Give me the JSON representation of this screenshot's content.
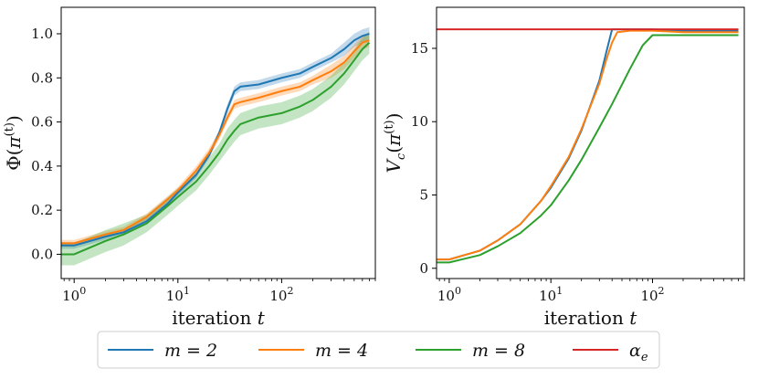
{
  "chart_data": [
    {
      "type": "line",
      "title": "",
      "xlabel": "iteration t",
      "ylabel": "Φ(π(t))",
      "xscale": "log",
      "xlim": [
        0.75,
        800
      ],
      "ylim": [
        -0.11,
        1.12
      ],
      "xticks": [
        {
          "value": 1,
          "label": "10⁰"
        },
        {
          "value": 10,
          "label": "10¹"
        },
        {
          "value": 100,
          "label": "10²"
        }
      ],
      "yticks": [
        {
          "value": 0.0,
          "label": "0.0"
        },
        {
          "value": 0.2,
          "label": "0.2"
        },
        {
          "value": 0.4,
          "label": "0.4"
        },
        {
          "value": 0.6,
          "label": "0.6"
        },
        {
          "value": 0.8,
          "label": "0.8"
        },
        {
          "value": 1.0,
          "label": "1.0"
        }
      ],
      "grid": false,
      "series": [
        {
          "name": "m = 2",
          "color": "#1f77b4",
          "x": [
            0.75,
            1,
            2,
            3,
            5,
            8,
            10,
            15,
            20,
            25,
            30,
            35,
            40,
            60,
            100,
            150,
            200,
            300,
            400,
            500,
            600,
            700
          ],
          "y": [
            0.04,
            0.04,
            0.08,
            0.1,
            0.15,
            0.23,
            0.28,
            0.36,
            0.45,
            0.55,
            0.66,
            0.74,
            0.76,
            0.77,
            0.8,
            0.82,
            0.85,
            0.89,
            0.93,
            0.97,
            0.99,
            1.0
          ],
          "band": [
            0.015,
            0.015,
            0.015,
            0.015,
            0.015,
            0.015,
            0.015,
            0.015,
            0.015,
            0.015,
            0.02,
            0.02,
            0.02,
            0.02,
            0.02,
            0.02,
            0.02,
            0.02,
            0.03,
            0.03,
            0.03,
            0.03
          ]
        },
        {
          "name": "m = 4",
          "color": "#ff7f0e",
          "x": [
            0.75,
            1,
            2,
            3,
            5,
            8,
            10,
            15,
            20,
            25,
            30,
            35,
            40,
            60,
            100,
            150,
            200,
            300,
            400,
            500,
            600,
            700
          ],
          "y": [
            0.05,
            0.05,
            0.09,
            0.11,
            0.17,
            0.25,
            0.29,
            0.38,
            0.46,
            0.54,
            0.62,
            0.68,
            0.69,
            0.71,
            0.74,
            0.76,
            0.79,
            0.83,
            0.87,
            0.92,
            0.96,
            0.97
          ],
          "band": [
            0.015,
            0.015,
            0.015,
            0.015,
            0.015,
            0.015,
            0.015,
            0.02,
            0.02,
            0.02,
            0.02,
            0.02,
            0.02,
            0.02,
            0.02,
            0.02,
            0.02,
            0.03,
            0.03,
            0.03,
            0.03,
            0.03
          ]
        },
        {
          "name": "m = 8",
          "color": "#2ca02c",
          "x": [
            0.75,
            1,
            2,
            3,
            5,
            8,
            10,
            15,
            20,
            25,
            30,
            35,
            40,
            60,
            100,
            150,
            200,
            300,
            400,
            500,
            600,
            700
          ],
          "y": [
            0.0,
            0.0,
            0.06,
            0.09,
            0.14,
            0.22,
            0.26,
            0.33,
            0.4,
            0.46,
            0.52,
            0.56,
            0.59,
            0.62,
            0.64,
            0.67,
            0.7,
            0.76,
            0.82,
            0.88,
            0.93,
            0.96
          ],
          "band": [
            0.05,
            0.05,
            0.05,
            0.05,
            0.04,
            0.04,
            0.04,
            0.04,
            0.04,
            0.04,
            0.05,
            0.05,
            0.05,
            0.05,
            0.05,
            0.05,
            0.05,
            0.05,
            0.05,
            0.05,
            0.05,
            0.05
          ]
        }
      ]
    },
    {
      "type": "line",
      "title": "",
      "xlabel": "iteration t",
      "ylabel": "Vc(π(t))",
      "xscale": "log",
      "xlim": [
        0.75,
        800
      ],
      "ylim": [
        -0.7,
        17.8
      ],
      "xticks": [
        {
          "value": 1,
          "label": "10⁰"
        },
        {
          "value": 10,
          "label": "10¹"
        },
        {
          "value": 100,
          "label": "10²"
        }
      ],
      "yticks": [
        {
          "value": 0,
          "label": "0"
        },
        {
          "value": 5,
          "label": "5"
        },
        {
          "value": 10,
          "label": "10"
        },
        {
          "value": 15,
          "label": "15"
        }
      ],
      "grid": false,
      "series": [
        {
          "name": "m = 2",
          "color": "#1f77b4",
          "x": [
            0.75,
            1,
            2,
            3,
            5,
            8,
            10,
            15,
            20,
            30,
            35,
            40,
            60,
            100,
            200,
            700
          ],
          "y": [
            0.6,
            0.6,
            1.2,
            1.9,
            3.0,
            4.6,
            5.5,
            7.5,
            9.4,
            12.8,
            14.7,
            16.3,
            16.3,
            16.3,
            16.2,
            16.2
          ]
        },
        {
          "name": "m = 4",
          "color": "#ff7f0e",
          "x": [
            0.75,
            1,
            2,
            3,
            5,
            8,
            10,
            15,
            20,
            30,
            35,
            40,
            45,
            60,
            100,
            200,
            700
          ],
          "y": [
            0.6,
            0.6,
            1.2,
            1.9,
            3.0,
            4.6,
            5.6,
            7.6,
            9.5,
            12.6,
            14.2,
            15.4,
            16.1,
            16.2,
            16.2,
            16.1,
            16.1
          ]
        },
        {
          "name": "m = 8",
          "color": "#2ca02c",
          "x": [
            0.75,
            1,
            2,
            3,
            5,
            8,
            10,
            15,
            20,
            30,
            40,
            60,
            80,
            100,
            200,
            700
          ],
          "y": [
            0.4,
            0.4,
            0.9,
            1.5,
            2.4,
            3.6,
            4.3,
            6.0,
            7.4,
            9.6,
            11.2,
            13.6,
            15.2,
            15.9,
            15.9,
            15.9
          ]
        },
        {
          "name": "αe",
          "color": "#d62728",
          "x": [
            0.75,
            700
          ],
          "y": [
            16.3,
            16.3
          ]
        }
      ]
    }
  ],
  "legend": {
    "placement": "bottom-center",
    "entries": [
      {
        "label": "m = 2",
        "color": "#1f77b4"
      },
      {
        "label": "m = 4",
        "color": "#ff7f0e"
      },
      {
        "label": "m = 8",
        "color": "#2ca02c"
      },
      {
        "label": "αe",
        "color": "#d62728"
      }
    ]
  }
}
